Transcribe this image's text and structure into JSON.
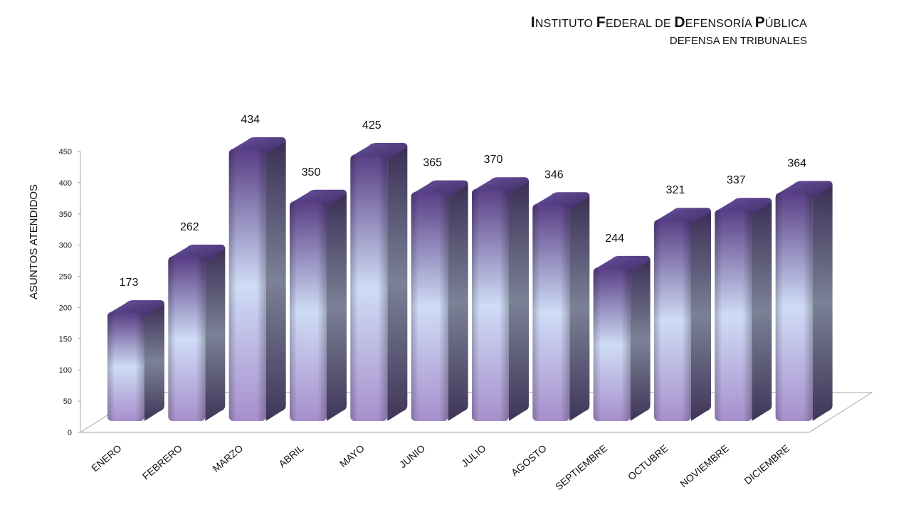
{
  "header": {
    "title_parts": [
      {
        "cap": "I",
        "rest": "NSTITUTO "
      },
      {
        "cap": "F",
        "rest": "EDERAL DE "
      },
      {
        "cap": "D",
        "rest": "EFENSORÍA "
      },
      {
        "cap": "P",
        "rest": "ÚBLICA"
      }
    ],
    "subtitle": "DEFENSA EN TRIBUNALES"
  },
  "chart_data": {
    "type": "bar",
    "style": "3d-cylinder-columns",
    "categories": [
      "ENERO",
      "FEBRERO",
      "MARZO",
      "ABRIL",
      "MAYO",
      "JUNIO",
      "JULIO",
      "AGOSTO",
      "SEPTIEMBRE",
      "OCTUBRE",
      "NOVIEMBRE",
      "DICIEMBRE"
    ],
    "values": [
      173,
      262,
      434,
      350,
      425,
      365,
      370,
      346,
      244,
      321,
      337,
      364
    ],
    "ylabel": "ASUNTOS ATENDIDOS",
    "xlabel": "",
    "ylim": [
      0,
      450
    ],
    "yticks": [
      0,
      50,
      100,
      150,
      200,
      250,
      300,
      350,
      400,
      450
    ],
    "grid": false,
    "legend": "none",
    "colors": {
      "bar_light": "#cfdcf6",
      "bar_mid": "#a78fcc",
      "bar_dark": "#5a3f86",
      "side_dark": "#3e3558",
      "top": "#4f3a78",
      "axis": "#a6a6a6"
    }
  }
}
